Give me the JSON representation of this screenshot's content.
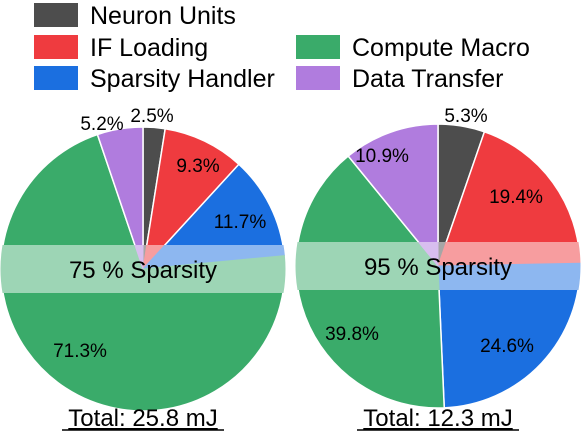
{
  "legend": [
    {
      "key": "neuron",
      "label": "Neuron Units",
      "color": "#4d4d4d"
    },
    {
      "key": "if",
      "label": "IF Loading",
      "color": "#ef3b3f"
    },
    {
      "key": "sparsity",
      "label": "Sparsity Handler",
      "color": "#1b6fe0"
    },
    {
      "key": "compute",
      "label": "Compute Macro",
      "color": "#3aab6a"
    },
    {
      "key": "data",
      "label": "Data Transfer",
      "color": "#b07cde"
    }
  ],
  "chart_data": [
    {
      "type": "pie",
      "band_label": "75 % Sparsity",
      "total_label": "Total: 25.8 mJ",
      "slices": [
        {
          "key": "neuron",
          "label": "Neuron Units",
          "value": 2.5,
          "value_label": "2.5%"
        },
        {
          "key": "if",
          "label": "IF Loading",
          "value": 9.3,
          "value_label": "9.3%"
        },
        {
          "key": "sparsity",
          "label": "Sparsity Handler",
          "value": 11.7,
          "value_label": "11.7%"
        },
        {
          "key": "compute",
          "label": "Compute Macro",
          "value": 71.3,
          "value_label": "71.3%"
        },
        {
          "key": "data",
          "label": "Data Transfer",
          "value": 5.2,
          "value_label": "5.2%"
        }
      ]
    },
    {
      "type": "pie",
      "band_label": "95 % Sparsity",
      "total_label": "Total: 12.3 mJ",
      "slices": [
        {
          "key": "neuron",
          "label": "Neuron Units",
          "value": 5.3,
          "value_label": "5.3%"
        },
        {
          "key": "if",
          "label": "IF Loading",
          "value": 19.4,
          "value_label": "19.4%"
        },
        {
          "key": "sparsity",
          "label": "Sparsity Handler",
          "value": 24.6,
          "value_label": "24.6%"
        },
        {
          "key": "compute",
          "label": "Compute Macro",
          "value": 39.8,
          "value_label": "39.8%"
        },
        {
          "key": "data",
          "label": "Data Transfer",
          "value": 10.9,
          "value_label": "10.9%"
        }
      ]
    }
  ]
}
